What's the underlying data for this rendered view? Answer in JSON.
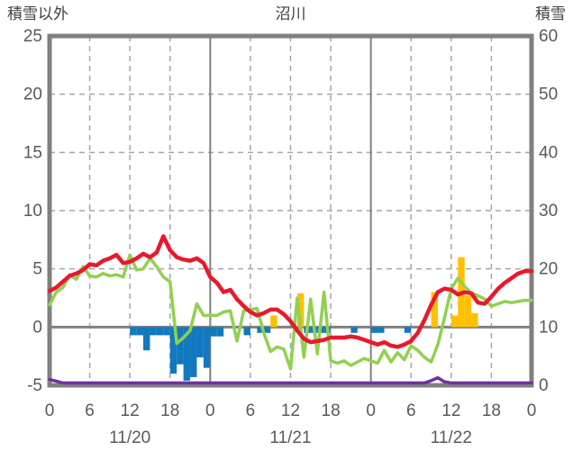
{
  "header": {
    "left_axis_title": "積雪以外",
    "title": "沼川",
    "right_axis_title": "積雪"
  },
  "chart_data": {
    "type": "combo",
    "title": "沼川",
    "x_unit": "hour",
    "x_range_hours": [
      0,
      72
    ],
    "x_tick_interval": 6,
    "x_tick_labels": [
      "0",
      "6",
      "12",
      "18",
      "0",
      "6",
      "12",
      "18",
      "0",
      "6",
      "12",
      "18",
      "0"
    ],
    "date_labels": [
      "11/20",
      "11/21",
      "11/22"
    ],
    "left_axis": {
      "title": "積雪以外",
      "min": -5,
      "max": 25,
      "ticks": [
        -5,
        0,
        5,
        10,
        15,
        20,
        25
      ]
    },
    "right_axis": {
      "title": "積雪",
      "min": 0,
      "max": 60,
      "ticks": [
        0,
        10,
        20,
        30,
        40,
        50,
        60
      ]
    },
    "grid": {
      "h_dashed_at": [
        5,
        10,
        15,
        20
      ],
      "v_dashed_every": 6,
      "v_solid_at_hours": [
        24,
        48
      ],
      "zero_line": 0
    },
    "colors": {
      "frame": "#808080",
      "grid": "#a6a6a6",
      "zero_line": "#808080",
      "tick_text": "#595959",
      "red_line": "#e8192c",
      "green_line": "#92d050",
      "purple_line": "#7030a0",
      "blue_bars": "#1279bf",
      "orange_bars": "#ffc000"
    },
    "series": [
      {
        "name": "red-line",
        "type": "line",
        "color_key": "red_line",
        "values": [
          3.1,
          3.4,
          3.9,
          4.4,
          4.6,
          4.9,
          5.4,
          5.3,
          5.7,
          5.9,
          6.2,
          5.5,
          5.6,
          5.9,
          6.3,
          6.0,
          6.4,
          7.8,
          6.6,
          6.0,
          5.8,
          5.7,
          5.9,
          5.5,
          4.3,
          3.8,
          3.0,
          3.2,
          2.4,
          1.8,
          1.3,
          1.0,
          1.2,
          1.5,
          1.5,
          1.1,
          0.5,
          -0.3,
          -1.0,
          -1.3,
          -1.2,
          -1.1,
          -0.9,
          -0.9,
          -0.9,
          -0.8,
          -0.9,
          -1.1,
          -1.3,
          -1.5,
          -1.3,
          -1.6,
          -1.7,
          -1.5,
          -1.2,
          -0.5,
          0.6,
          1.9,
          3.0,
          3.3,
          3.2,
          2.8,
          3.0,
          2.9,
          2.1,
          2.0,
          2.6,
          3.3,
          3.8,
          4.2,
          4.6,
          4.8,
          4.8
        ]
      },
      {
        "name": "green-line",
        "type": "line",
        "color_key": "green_line",
        "values": [
          1.9,
          3.0,
          3.4,
          4.5,
          4.1,
          5.2,
          4.4,
          4.3,
          4.6,
          4.4,
          4.5,
          4.3,
          6.2,
          4.9,
          5.0,
          5.9,
          5.2,
          4.3,
          3.9,
          -1.4,
          -0.9,
          -0.3,
          2.0,
          1.0,
          1.0,
          1.0,
          1.3,
          1.4,
          -1.2,
          1.4,
          1.5,
          1.6,
          -0.5,
          -2.1,
          -1.7,
          -1.9,
          -3.6,
          2.5,
          -2.6,
          2.4,
          -2.3,
          3.0,
          -2.9,
          -3.1,
          -2.9,
          -3.3,
          -3.0,
          -2.7,
          -2.9,
          -3.1,
          -2.0,
          -3.0,
          -2.2,
          -2.8,
          -1.6,
          -2.0,
          -2.6,
          -3.0,
          -1.5,
          0.8,
          3.3,
          4.2,
          3.5,
          2.9,
          2.7,
          2.4,
          1.8,
          2.0,
          2.2,
          2.1,
          2.2,
          2.3,
          2.3
        ]
      },
      {
        "name": "purple-line",
        "type": "line",
        "color_key": "purple_line",
        "values": [
          -4.5,
          -4.65,
          -4.8,
          -4.8,
          -4.8,
          -4.8,
          -4.8,
          -4.8,
          -4.8,
          -4.8,
          -4.8,
          -4.8,
          -4.8,
          -4.8,
          -4.8,
          -4.8,
          -4.8,
          -4.8,
          -4.8,
          -4.8,
          -4.8,
          -4.8,
          -4.8,
          -4.8,
          -4.8,
          -4.8,
          -4.8,
          -4.8,
          -4.8,
          -4.8,
          -4.8,
          -4.8,
          -4.8,
          -4.8,
          -4.8,
          -4.8,
          -4.8,
          -4.8,
          -4.8,
          -4.8,
          -4.8,
          -4.8,
          -4.8,
          -4.8,
          -4.8,
          -4.8,
          -4.8,
          -4.8,
          -4.8,
          -4.8,
          -4.8,
          -4.8,
          -4.8,
          -4.8,
          -4.8,
          -4.8,
          -4.8,
          -4.6,
          -4.35,
          -4.7,
          -4.8,
          -4.8,
          -4.8,
          -4.8,
          -4.8,
          -4.8,
          -4.8,
          -4.8,
          -4.8,
          -4.8,
          -4.8,
          -4.8,
          -4.8
        ]
      },
      {
        "name": "blue-bars",
        "type": "bar",
        "color_key": "blue_bars",
        "values": [
          0,
          0,
          0,
          0,
          0,
          0,
          0,
          0,
          0,
          0,
          0,
          0,
          -0.7,
          -0.7,
          -2.0,
          -0.7,
          -0.7,
          -0.7,
          -4.0,
          -3.2,
          -4.6,
          -4.3,
          -2.6,
          -3.5,
          -0.8,
          -0.8,
          0,
          0,
          0,
          -0.7,
          0,
          -0.5,
          -0.5,
          0,
          0,
          0,
          0,
          0,
          -0.5,
          -0.5,
          -0.5,
          -0.5,
          0,
          0,
          0,
          -0.5,
          0,
          0,
          -0.5,
          -0.5,
          0,
          0,
          0,
          -0.5,
          0,
          0,
          0,
          0,
          0,
          0,
          0,
          0,
          0,
          0,
          0,
          0,
          0,
          0,
          0,
          0,
          0,
          0
        ]
      },
      {
        "name": "orange-bars",
        "type": "bar",
        "color_key": "orange_bars",
        "values": [
          0,
          0,
          0,
          0,
          0,
          0,
          0,
          0,
          0,
          0,
          0,
          0,
          0,
          0,
          0,
          0,
          0,
          0,
          0,
          0,
          0,
          0,
          0,
          0,
          0,
          0,
          0,
          0,
          0,
          0,
          0,
          0,
          0,
          1.0,
          0,
          0,
          0,
          2.9,
          0,
          0,
          0,
          0,
          0,
          0,
          0,
          0,
          0,
          0,
          0,
          0,
          0,
          0,
          0,
          0,
          0,
          0,
          0,
          3.0,
          0,
          0,
          1.0,
          6.0,
          2.7,
          1.2,
          0,
          0,
          0,
          0,
          0,
          0,
          0,
          0
        ]
      }
    ]
  }
}
